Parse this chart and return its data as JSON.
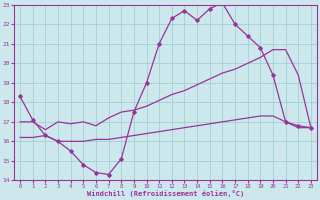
{
  "xlabel": "Windchill (Refroidissement éolien,°C)",
  "background_color": "#cce8ec",
  "grid_color": "#99cccc",
  "line_color": "#993399",
  "xlim": [
    -0.5,
    23.5
  ],
  "ylim": [
    14,
    23
  ],
  "xticks": [
    0,
    1,
    2,
    3,
    4,
    5,
    6,
    7,
    8,
    9,
    10,
    11,
    12,
    13,
    14,
    15,
    16,
    17,
    18,
    19,
    20,
    21,
    22,
    23
  ],
  "yticks": [
    14,
    15,
    16,
    17,
    18,
    19,
    20,
    21,
    22,
    23
  ],
  "series1_x": [
    0,
    1,
    2,
    3,
    4,
    5,
    6,
    7,
    8,
    9,
    10,
    11,
    12,
    13,
    14,
    15,
    16,
    17,
    18,
    19,
    20,
    21,
    22,
    23
  ],
  "series1_y": [
    18.3,
    17.1,
    16.3,
    16.0,
    15.5,
    14.8,
    14.4,
    14.3,
    15.1,
    17.5,
    19.0,
    21.0,
    22.3,
    22.7,
    22.2,
    22.8,
    23.1,
    22.0,
    21.4,
    20.8,
    19.4,
    17.0,
    16.8,
    16.7
  ],
  "series2_x": [
    0,
    1,
    2,
    3,
    4,
    5,
    6,
    7,
    8,
    9,
    10,
    11,
    12,
    13,
    14,
    15,
    16,
    17,
    18,
    19,
    20,
    21,
    22,
    23
  ],
  "series2_y": [
    17.0,
    17.0,
    16.6,
    17.0,
    16.9,
    17.0,
    16.8,
    17.2,
    17.5,
    17.6,
    17.8,
    18.1,
    18.4,
    18.6,
    18.9,
    19.2,
    19.5,
    19.7,
    20.0,
    20.3,
    20.7,
    20.7,
    19.4,
    16.7
  ],
  "series3_x": [
    0,
    1,
    2,
    3,
    4,
    5,
    6,
    7,
    8,
    9,
    10,
    11,
    12,
    13,
    14,
    15,
    16,
    17,
    18,
    19,
    20,
    21,
    22,
    23
  ],
  "series3_y": [
    16.2,
    16.2,
    16.3,
    16.0,
    16.0,
    16.0,
    16.1,
    16.1,
    16.2,
    16.3,
    16.4,
    16.5,
    16.6,
    16.7,
    16.8,
    16.9,
    17.0,
    17.1,
    17.2,
    17.3,
    17.3,
    17.0,
    16.7,
    16.7
  ]
}
